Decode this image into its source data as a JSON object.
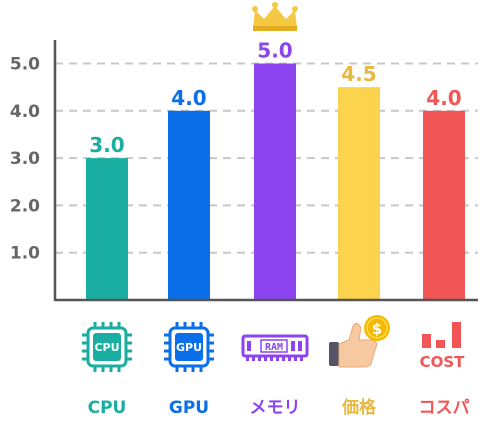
{
  "chart_data": {
    "type": "bar",
    "categories": [
      "CPU",
      "GPU",
      "メモリ",
      "価格",
      "コスパ"
    ],
    "values": [
      3.0,
      4.0,
      5.0,
      4.5,
      4.0
    ],
    "value_labels": [
      "3.0",
      "4.0",
      "5.0",
      "4.5",
      "4.0"
    ],
    "y_ticks": [
      "1.0",
      "2.0",
      "3.0",
      "4.0",
      "5.0"
    ],
    "ylim": [
      0,
      5.5
    ],
    "grid": "horizontal dashed",
    "colors": [
      "#1aaea2",
      "#0a6fe8",
      "#8b44f0",
      "#fcd34d",
      "#f25555"
    ],
    "label_colors": [
      "#1aaea2",
      "#0a6fe8",
      "#8b44f0",
      "#e8b840",
      "#f25555"
    ],
    "icons": [
      {
        "name": "cpu-chip-icon",
        "text": "CPU"
      },
      {
        "name": "gpu-chip-icon",
        "text": "GPU"
      },
      {
        "name": "ram-module-icon",
        "text": "RAM"
      },
      {
        "name": "thumbs-up-coin-icon",
        "text": "$"
      },
      {
        "name": "cost-bars-icon",
        "text": "COST"
      }
    ],
    "highlight": {
      "index": 2,
      "icon": "crown-icon",
      "color": "#f5c842"
    }
  }
}
